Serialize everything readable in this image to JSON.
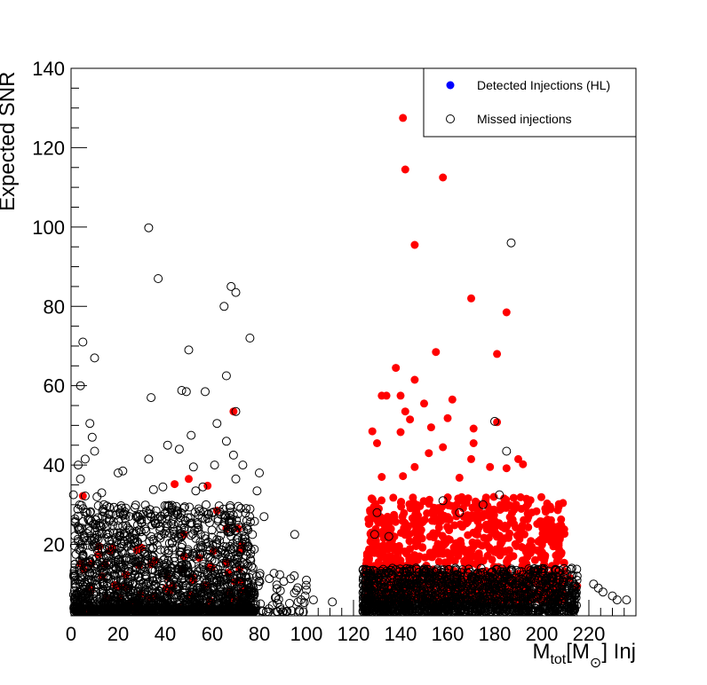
{
  "chart_data": {
    "type": "scatter",
    "title": "",
    "xlabel": "M_tot[M_⊙] Inj",
    "xlabel_parts": {
      "main": "M",
      "sub1": "tot",
      "bracket_open": "[M",
      "sun": "⊙",
      "rest": "] Inj"
    },
    "ylabel": "Expected SNR",
    "xlim": [
      0,
      240
    ],
    "ylim": [
      2,
      140
    ],
    "x_ticks": [
      0,
      20,
      40,
      60,
      80,
      100,
      120,
      140,
      160,
      180,
      200,
      220
    ],
    "y_ticks": [
      20,
      40,
      60,
      80,
      100,
      120,
      140
    ],
    "grid": false,
    "legend_position": "top-right",
    "series": [
      {
        "name": "Detected Injections (HL)",
        "legend_color": "#0000ff",
        "plot_color": "#ff0000",
        "marker": "filled-circle",
        "points": [
          [
            141,
            127.5
          ],
          [
            142,
            114.5
          ],
          [
            158,
            112.5
          ],
          [
            146,
            95.5
          ],
          [
            170,
            82
          ],
          [
            185,
            78.5
          ],
          [
            181,
            68
          ],
          [
            155,
            68.5
          ],
          [
            138,
            64.5
          ],
          [
            146,
            61.5
          ],
          [
            140,
            57.5
          ],
          [
            132,
            57.5
          ],
          [
            134,
            57.5
          ],
          [
            162,
            56.5
          ],
          [
            150,
            55.5
          ],
          [
            142,
            53.5
          ],
          [
            144,
            51.5
          ],
          [
            160,
            51.8
          ],
          [
            153,
            49.5
          ],
          [
            128,
            48.5
          ],
          [
            140,
            48.3
          ],
          [
            171,
            49.2
          ],
          [
            181,
            50.8
          ],
          [
            130,
            45.5
          ],
          [
            171,
            45.5
          ],
          [
            158,
            44.5
          ],
          [
            152,
            43
          ],
          [
            146,
            39.5
          ],
          [
            170,
            41.5
          ],
          [
            190,
            41.5
          ],
          [
            192,
            40.2
          ],
          [
            132,
            37
          ],
          [
            141,
            37.2
          ],
          [
            165,
            36.8
          ],
          [
            185,
            39.2
          ],
          [
            178,
            39.5
          ],
          [
            69,
            53.5
          ],
          [
            50,
            36.5
          ],
          [
            44,
            35.2
          ],
          [
            58,
            34.8
          ],
          [
            5,
            32.2
          ],
          [
            62,
            28.5
          ],
          [
            28,
            18.5
          ],
          [
            48,
            22.5
          ],
          [
            66,
            24
          ],
          [
            206,
            20.5
          ],
          [
            198,
            18.5
          ],
          [
            201,
            15
          ],
          [
            204,
            12.5
          ],
          [
            212,
            11.5
          ],
          [
            215,
            9.5
          ],
          [
            208,
            10.5
          ],
          [
            71,
            24
          ]
        ],
        "cluster": {
          "x_range": [
            125,
            210
          ],
          "y_range": [
            6,
            32
          ],
          "count": 1100
        },
        "low_cluster": {
          "x_range": [
            3,
            75
          ],
          "y_range": [
            3,
            20
          ],
          "count": 70
        }
      },
      {
        "name": "Missed injections",
        "legend_color": "#000000",
        "plot_color": "#000000",
        "marker": "open-circle",
        "points": [
          [
            33,
            99.8
          ],
          [
            187,
            96
          ],
          [
            37,
            87
          ],
          [
            68,
            85
          ],
          [
            70,
            83.5
          ],
          [
            65,
            80
          ],
          [
            76,
            72
          ],
          [
            5,
            71
          ],
          [
            10,
            67
          ],
          [
            50,
            69
          ],
          [
            4,
            60
          ],
          [
            47,
            58.8
          ],
          [
            49,
            58.5
          ],
          [
            57,
            58.5
          ],
          [
            34,
            57
          ],
          [
            66,
            62.5
          ],
          [
            62,
            50.5
          ],
          [
            8,
            50.5
          ],
          [
            70,
            53.5
          ],
          [
            180,
            51
          ],
          [
            9,
            47
          ],
          [
            51,
            47.5
          ],
          [
            10,
            43.5
          ],
          [
            33,
            41.5
          ],
          [
            6,
            41.5
          ],
          [
            22,
            38.5
          ],
          [
            20,
            38
          ],
          [
            46,
            44
          ],
          [
            66,
            46
          ],
          [
            69,
            42.5
          ],
          [
            41,
            45
          ],
          [
            52,
            39.5
          ],
          [
            61,
            40
          ],
          [
            70,
            36.5
          ],
          [
            80,
            38
          ],
          [
            73,
            40
          ],
          [
            3,
            40
          ],
          [
            4,
            36.5
          ],
          [
            35,
            33.8
          ],
          [
            39,
            34.5
          ],
          [
            53,
            33.5
          ],
          [
            56,
            34.5
          ],
          [
            79,
            33.5
          ],
          [
            95,
            22.5
          ],
          [
            82,
            27
          ],
          [
            13,
            33
          ],
          [
            1,
            32.5
          ],
          [
            11,
            32
          ],
          [
            6,
            32.2
          ],
          [
            14,
            30
          ],
          [
            111,
            5.5
          ],
          [
            100,
            8.5
          ],
          [
            100,
            11
          ],
          [
            103,
            6
          ],
          [
            185,
            43.5
          ],
          [
            182,
            32.5
          ],
          [
            200,
            13
          ],
          [
            215,
            12
          ],
          [
            222,
            10
          ],
          [
            224,
            9
          ],
          [
            226,
            8
          ],
          [
            230,
            7
          ],
          [
            232,
            6
          ],
          [
            236,
            6
          ],
          [
            189,
            10
          ],
          [
            179,
            9
          ],
          [
            175,
            30
          ],
          [
            165,
            28
          ],
          [
            158,
            31
          ],
          [
            135,
            22
          ],
          [
            129,
            22.5
          ],
          [
            130,
            28
          ]
        ],
        "cluster": {
          "x_range": [
            1,
            78
          ],
          "y_range": [
            3,
            30
          ],
          "count": 1900
        },
        "cluster2": {
          "x_range": [
            124,
            215
          ],
          "y_range": [
            3,
            14
          ],
          "count": 1500
        }
      }
    ]
  }
}
